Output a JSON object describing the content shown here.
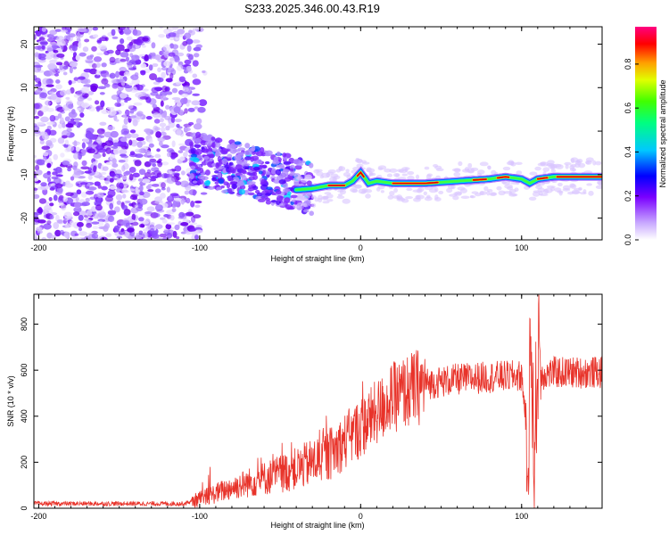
{
  "title": "S233.2025.346.00.43.R19",
  "chart_data": [
    {
      "type": "heatmap",
      "xlabel": "Height of straight line (km)",
      "ylabel": "Frequency (Hz)",
      "xlim": [
        -203,
        150
      ],
      "ylim": [
        -25,
        24
      ],
      "xticks": [
        "-200",
        "-100",
        "0",
        "100"
      ],
      "yticks": [
        "20",
        "10",
        "0",
        "-10",
        "-20"
      ],
      "colorbar": {
        "label": "Normalized spectral amplitude",
        "ticks": [
          "0.0",
          "0.2",
          "0.4",
          "0.6",
          "0.8"
        ],
        "range": [
          0,
          0.97
        ]
      },
      "signal_track": {
        "x": [
          -40,
          -30,
          -20,
          -10,
          -5,
          0,
          5,
          10,
          20,
          40,
          60,
          80,
          90,
          100,
          105,
          110,
          120,
          150
        ],
        "freq": [
          -13.5,
          -13.2,
          -12.5,
          -12.5,
          -11.5,
          -9.5,
          -12.0,
          -11.5,
          -12.0,
          -12.0,
          -11.5,
          -11.0,
          -10.5,
          -11.0,
          -12.0,
          -11.0,
          -10.5,
          -10.5
        ]
      }
    },
    {
      "type": "line",
      "xlabel": "Height of straight line (km)",
      "ylabel": "SNR (10 * v/v)",
      "xlim": [
        -203,
        150
      ],
      "ylim": [
        0,
        930
      ],
      "xticks": [
        "-200",
        "-100",
        "0",
        "100"
      ],
      "yticks": [
        "0",
        "200",
        "400",
        "600",
        "800"
      ],
      "series_color": "#e8332a",
      "trend": {
        "x": [
          -203,
          -110,
          -100,
          -80,
          -60,
          -40,
          -20,
          0,
          20,
          40,
          60,
          80,
          100,
          104,
          106,
          108,
          110,
          112,
          120,
          150
        ],
        "y": [
          20,
          20,
          40,
          90,
          130,
          170,
          230,
          350,
          480,
          540,
          560,
          570,
          575,
          300,
          700,
          200,
          680,
          580,
          590,
          590
        ]
      }
    }
  ]
}
